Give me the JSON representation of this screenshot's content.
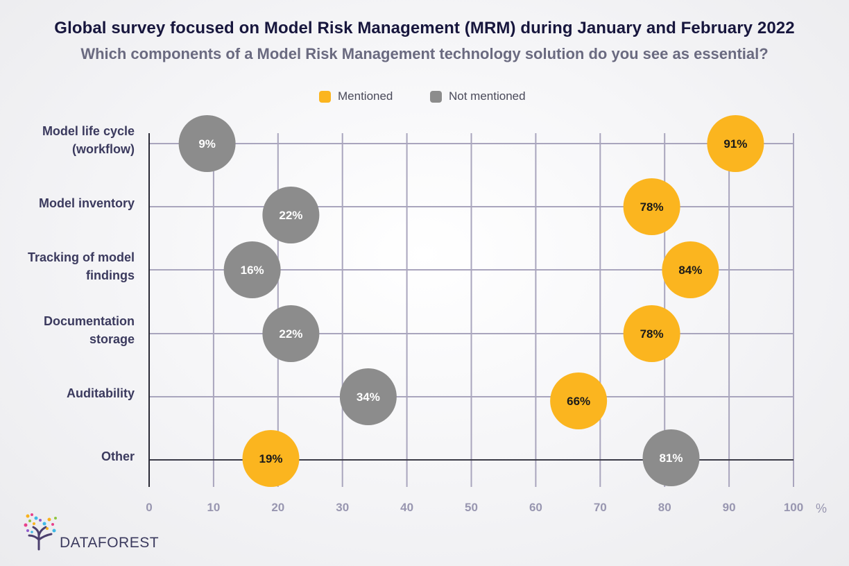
{
  "header": {
    "title": "Global survey focused on Model Risk Management (MRM) during January and February 2022",
    "subtitle": "Which components of a Model Risk Management technology solution do you see as essential?"
  },
  "legend": [
    {
      "label": "Mentioned",
      "color": "#fbb51f"
    },
    {
      "label": "Not mentioned",
      "color": "#8c8c8c"
    }
  ],
  "logo": {
    "text": "DATAFOREST",
    "icon": "tree-icon"
  },
  "chart_data": {
    "type": "scatter",
    "x_unit_label": "%",
    "xlim": [
      0,
      100
    ],
    "x_ticks": [
      0,
      10,
      20,
      30,
      40,
      50,
      60,
      70,
      80,
      90,
      100
    ],
    "categories": [
      [
        "Model life cycle",
        "(workflow)"
      ],
      [
        "Model inventory"
      ],
      [
        "Tracking of model",
        "findings"
      ],
      [
        "Documentation",
        "storage"
      ],
      [
        "Auditability"
      ],
      [
        "Other"
      ]
    ],
    "series": [
      {
        "name": "Mentioned",
        "color": "#fbb51f",
        "text_color": "#1a1a1a",
        "values": [
          91,
          78,
          84,
          78,
          66,
          19
        ],
        "labels": [
          "91%",
          "78%",
          "84%",
          "78%",
          "66%",
          "19%"
        ]
      },
      {
        "name": "Not mentioned",
        "color": "#8c8c8c",
        "text_color": "#ffffff",
        "values": [
          9,
          22,
          16,
          22,
          34,
          81
        ],
        "labels": [
          "9%",
          "22%",
          "16%",
          "22%",
          "34%",
          "81%"
        ]
      }
    ],
    "grid": true,
    "legend_position": "top-center"
  }
}
